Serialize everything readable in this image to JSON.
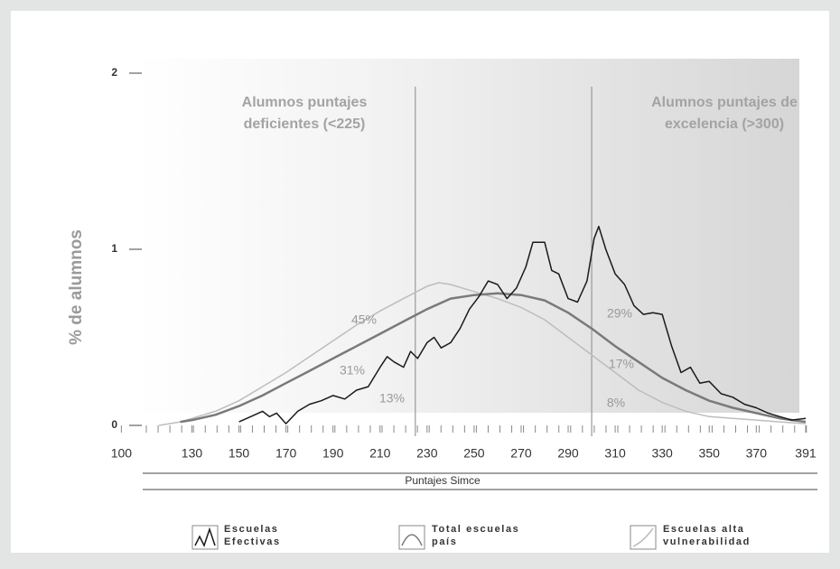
{
  "chart_data": {
    "type": "line",
    "ylabel": "% de alumnos",
    "xlabel": "Puntajes Simce",
    "xlim": [
      106,
      396
    ],
    "ylim": [
      0,
      2
    ],
    "xticks": [
      100,
      130,
      150,
      170,
      190,
      210,
      230,
      250,
      270,
      290,
      310,
      330,
      350,
      370,
      391
    ],
    "yticks": [
      0,
      1,
      2
    ],
    "vlines": [
      225,
      300
    ],
    "annotations": [
      "Alumnos puntajes deficientes (<225)",
      "Alumnos puntajes de excelencia (>300)",
      "45%",
      "31%",
      "13%",
      "29%",
      "17%",
      "8%"
    ],
    "series": [
      {
        "name": "Escuelas Efectivas",
        "color": "#1a1a1a",
        "x": [
          150,
          155,
          160,
          163,
          166,
          170,
          175,
          180,
          185,
          190,
          195,
          200,
          205,
          210,
          213,
          216,
          220,
          223,
          226,
          230,
          233,
          236,
          240,
          244,
          248,
          252,
          256,
          260,
          264,
          268,
          272,
          275,
          280,
          283,
          286,
          290,
          294,
          298,
          301,
          303,
          306,
          310,
          314,
          318,
          322,
          326,
          330,
          334,
          338,
          342,
          346,
          350,
          355,
          360,
          365,
          370,
          375,
          380,
          385,
          391
        ],
        "values": [
          0.02,
          0.05,
          0.08,
          0.05,
          0.07,
          0.01,
          0.08,
          0.12,
          0.14,
          0.17,
          0.15,
          0.2,
          0.22,
          0.33,
          0.39,
          0.36,
          0.33,
          0.42,
          0.38,
          0.47,
          0.5,
          0.44,
          0.47,
          0.55,
          0.66,
          0.73,
          0.82,
          0.8,
          0.72,
          0.78,
          0.9,
          1.04,
          1.04,
          0.88,
          0.86,
          0.72,
          0.7,
          0.82,
          1.06,
          1.13,
          1.0,
          0.86,
          0.8,
          0.68,
          0.63,
          0.64,
          0.63,
          0.45,
          0.3,
          0.33,
          0.24,
          0.25,
          0.18,
          0.16,
          0.12,
          0.1,
          0.07,
          0.05,
          0.03,
          0.04
        ]
      },
      {
        "name": "Total escuelas país",
        "color": "#7a7a7a",
        "x": [
          125,
          130,
          140,
          150,
          160,
          170,
          180,
          190,
          200,
          210,
          220,
          230,
          240,
          250,
          260,
          270,
          280,
          290,
          300,
          310,
          320,
          330,
          340,
          350,
          360,
          370,
          380,
          391
        ],
        "values": [
          0.02,
          0.03,
          0.06,
          0.11,
          0.17,
          0.24,
          0.31,
          0.38,
          0.45,
          0.52,
          0.59,
          0.66,
          0.72,
          0.74,
          0.75,
          0.74,
          0.71,
          0.64,
          0.55,
          0.45,
          0.36,
          0.27,
          0.2,
          0.14,
          0.1,
          0.07,
          0.04,
          0.02
        ]
      },
      {
        "name": "Escuelas alta vulnerabilidad",
        "color": "#bdbdbd",
        "x": [
          116,
          125,
          130,
          140,
          150,
          160,
          170,
          180,
          190,
          200,
          210,
          220,
          230,
          235,
          240,
          250,
          260,
          270,
          280,
          290,
          300,
          310,
          320,
          330,
          340,
          350,
          360,
          370,
          380,
          391
        ],
        "values": [
          0.0,
          0.02,
          0.04,
          0.08,
          0.14,
          0.22,
          0.3,
          0.39,
          0.48,
          0.57,
          0.65,
          0.72,
          0.79,
          0.81,
          0.8,
          0.76,
          0.72,
          0.67,
          0.6,
          0.5,
          0.4,
          0.3,
          0.2,
          0.13,
          0.08,
          0.05,
          0.04,
          0.03,
          0.02,
          0.01
        ]
      }
    ]
  }
}
